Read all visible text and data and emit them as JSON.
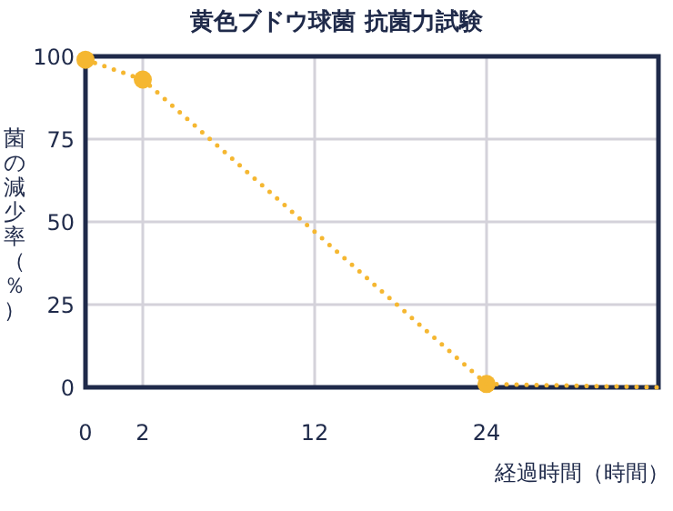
{
  "chart_data": {
    "type": "line",
    "title": "黄色ブドウ球菌 抗菌力試験",
    "xlabel": "経過時間（時間）",
    "ylabel": "菌の減少率（％）",
    "categories": [
      "0",
      "2",
      null,
      null,
      "12",
      null,
      null,
      "24",
      null,
      null,
      null
    ],
    "series": [
      {
        "color": "#f5b731",
        "marker": "circle",
        "values": [
          99,
          93,
          null,
          null,
          null,
          null,
          null,
          1,
          null,
          null,
          null
        ]
      },
      {
        "color": "#f5b731",
        "marker": "none",
        "values": [
          null,
          null,
          null,
          null,
          null,
          null,
          null,
          1,
          null,
          null,
          0
        ]
      }
    ],
    "ylim": [
      0,
      100
    ],
    "yticks": [
      0,
      25,
      50,
      75,
      100
    ],
    "grid": true,
    "line_style": "dotted"
  }
}
